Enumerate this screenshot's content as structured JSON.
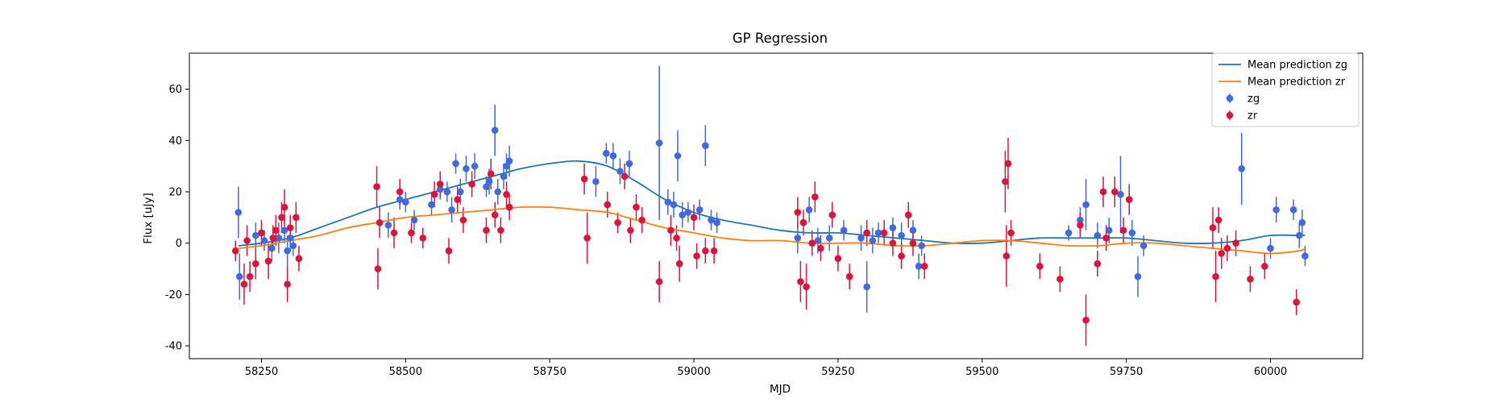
{
  "chart_data": {
    "type": "scatter",
    "title": "GP Regression",
    "xlabel": "MJD",
    "ylabel": "Flux [uJy]",
    "xlim": [
      58125,
      60160
    ],
    "ylim": [
      -45,
      74
    ],
    "xticks": [
      58250,
      58500,
      58750,
      59000,
      59250,
      59500,
      59750,
      60000
    ],
    "yticks": [
      -40,
      -20,
      0,
      20,
      40,
      60
    ],
    "grid": false,
    "legend_position": "top-right",
    "colors": {
      "zg_line": "#1f77b4",
      "zr_line": "#ff7f0e",
      "zg_points": "#4169e1",
      "zr_points": "#dc143c"
    },
    "lines": [
      {
        "name": "Mean prediction zg",
        "color": "#1f77b4",
        "x": [
          58210,
          58250,
          58300,
          58350,
          58400,
          58450,
          58500,
          58550,
          58600,
          58650,
          58700,
          58750,
          58800,
          58850,
          58900,
          58950,
          59000,
          59050,
          59100,
          59150,
          59200,
          59250,
          59300,
          59350,
          59400,
          59450,
          59500,
          59550,
          59600,
          59650,
          59700,
          59750,
          59800,
          59850,
          59900,
          59950,
          60000,
          60050,
          60060
        ],
        "y": [
          -1,
          0,
          2,
          6,
          10,
          14,
          17,
          20,
          23,
          26,
          29,
          31,
          32,
          30,
          24,
          17,
          12,
          9,
          7,
          5,
          4,
          4,
          3,
          2,
          1,
          0,
          0,
          1,
          2,
          2,
          2,
          2,
          1,
          0,
          0,
          1,
          3,
          3,
          3
        ]
      },
      {
        "name": "Mean prediction zr",
        "color": "#ff7f0e",
        "x": [
          58210,
          58250,
          58300,
          58350,
          58400,
          58450,
          58500,
          58550,
          58600,
          58650,
          58700,
          58750,
          58800,
          58850,
          58900,
          58950,
          59000,
          59050,
          59100,
          59150,
          59200,
          59250,
          59300,
          59350,
          59400,
          59450,
          59500,
          59550,
          59600,
          59650,
          59700,
          59750,
          59800,
          59850,
          59900,
          59950,
          60000,
          60050,
          60060
        ],
        "y": [
          -2,
          -1,
          1,
          3,
          6,
          8,
          10,
          11,
          12,
          13,
          14,
          14,
          13,
          12,
          9,
          6,
          4,
          2,
          1,
          1,
          0,
          0,
          0,
          -1,
          -1,
          0,
          1,
          1,
          0,
          -1,
          -1,
          0,
          0,
          -1,
          -2,
          -3,
          -4,
          -3,
          -2
        ]
      }
    ],
    "series": [
      {
        "name": "zg",
        "color": "#4169e1",
        "points": [
          [
            58210,
            12,
            10
          ],
          [
            58212,
            -13,
            9
          ],
          [
            58240,
            3,
            5
          ],
          [
            58255,
            1,
            4
          ],
          [
            58268,
            -2,
            5
          ],
          [
            58280,
            2,
            6
          ],
          [
            58290,
            5,
            5
          ],
          [
            58295,
            -3,
            6
          ],
          [
            58300,
            2,
            5
          ],
          [
            58305,
            -1,
            4
          ],
          [
            58470,
            7,
            5
          ],
          [
            58490,
            17,
            4
          ],
          [
            58500,
            16,
            4
          ],
          [
            58515,
            9,
            4
          ],
          [
            58545,
            15,
            4
          ],
          [
            58560,
            21,
            4
          ],
          [
            58572,
            20,
            4
          ],
          [
            58580,
            13,
            5
          ],
          [
            58587,
            31,
            4
          ],
          [
            58595,
            20,
            5
          ],
          [
            58605,
            29,
            5
          ],
          [
            58620,
            30,
            5
          ],
          [
            58640,
            22,
            4
          ],
          [
            58645,
            24,
            5
          ],
          [
            58655,
            44,
            10
          ],
          [
            58660,
            20,
            5
          ],
          [
            58670,
            26,
            5
          ],
          [
            58675,
            30,
            5
          ],
          [
            58680,
            32,
            6
          ],
          [
            58830,
            24,
            6
          ],
          [
            58848,
            35,
            4
          ],
          [
            58860,
            34,
            5
          ],
          [
            58872,
            28,
            5
          ],
          [
            58888,
            31,
            5
          ],
          [
            58940,
            39,
            30
          ],
          [
            58955,
            16,
            5
          ],
          [
            58965,
            15,
            5
          ],
          [
            58972,
            34,
            10
          ],
          [
            58980,
            11,
            5
          ],
          [
            58990,
            12,
            4
          ],
          [
            59010,
            13,
            4
          ],
          [
            59020,
            38,
            8
          ],
          [
            59030,
            9,
            4
          ],
          [
            59040,
            8,
            4
          ],
          [
            59180,
            2,
            6
          ],
          [
            59200,
            13,
            5
          ],
          [
            59215,
            1,
            5
          ],
          [
            59235,
            2,
            5
          ],
          [
            59260,
            5,
            4
          ],
          [
            59290,
            2,
            5
          ],
          [
            59300,
            -17,
            10
          ],
          [
            59310,
            1,
            5
          ],
          [
            59320,
            4,
            4
          ],
          [
            59345,
            6,
            4
          ],
          [
            59360,
            3,
            5
          ],
          [
            59380,
            5,
            4
          ],
          [
            59390,
            -9,
            5
          ],
          [
            59395,
            -1,
            4
          ],
          [
            59650,
            4,
            3
          ],
          [
            59670,
            9,
            5
          ],
          [
            59680,
            15,
            10
          ],
          [
            59700,
            3,
            5
          ],
          [
            59720,
            5,
            5
          ],
          [
            59740,
            19,
            15
          ],
          [
            59760,
            4,
            5
          ],
          [
            59770,
            -13,
            8
          ],
          [
            59780,
            -1,
            4
          ],
          [
            59950,
            29,
            14
          ],
          [
            60000,
            -2,
            4
          ],
          [
            60010,
            13,
            5
          ],
          [
            60040,
            13,
            4
          ],
          [
            60050,
            3,
            5
          ],
          [
            60055,
            8,
            5
          ],
          [
            60060,
            -5,
            4
          ]
        ]
      },
      {
        "name": "zr",
        "color": "#dc143c",
        "points": [
          [
            58205,
            -3,
            4
          ],
          [
            58220,
            -16,
            8
          ],
          [
            58225,
            1,
            6
          ],
          [
            58230,
            -13,
            6
          ],
          [
            58240,
            -8,
            6
          ],
          [
            58250,
            4,
            5
          ],
          [
            58262,
            -7,
            7
          ],
          [
            58270,
            2,
            5
          ],
          [
            58275,
            5,
            6
          ],
          [
            58285,
            10,
            6
          ],
          [
            58290,
            14,
            7
          ],
          [
            58295,
            -16,
            7
          ],
          [
            58300,
            6,
            5
          ],
          [
            58310,
            10,
            6
          ],
          [
            58315,
            -6,
            5
          ],
          [
            58450,
            22,
            8
          ],
          [
            58452,
            -10,
            8
          ],
          [
            58455,
            8,
            6
          ],
          [
            58480,
            4,
            6
          ],
          [
            58490,
            20,
            5
          ],
          [
            58510,
            4,
            4
          ],
          [
            58530,
            2,
            4
          ],
          [
            58550,
            19,
            5
          ],
          [
            58560,
            23,
            5
          ],
          [
            58575,
            -3,
            5
          ],
          [
            58590,
            17,
            5
          ],
          [
            58600,
            9,
            5
          ],
          [
            58615,
            23,
            5
          ],
          [
            58640,
            5,
            5
          ],
          [
            58648,
            27,
            6
          ],
          [
            58655,
            11,
            5
          ],
          [
            58665,
            5,
            5
          ],
          [
            58675,
            19,
            5
          ],
          [
            58680,
            14,
            5
          ],
          [
            58810,
            25,
            6
          ],
          [
            58815,
            2,
            10
          ],
          [
            58850,
            15,
            5
          ],
          [
            58868,
            8,
            4
          ],
          [
            58880,
            26,
            5
          ],
          [
            58890,
            5,
            5
          ],
          [
            58900,
            14,
            5
          ],
          [
            58910,
            9,
            5
          ],
          [
            58940,
            -15,
            8
          ],
          [
            58960,
            5,
            6
          ],
          [
            58970,
            2,
            5
          ],
          [
            58975,
            -8,
            7
          ],
          [
            59000,
            10,
            5
          ],
          [
            59005,
            -5,
            5
          ],
          [
            59020,
            -3,
            5
          ],
          [
            59035,
            -3,
            5
          ],
          [
            59180,
            12,
            6
          ],
          [
            59185,
            -15,
            8
          ],
          [
            59190,
            8,
            5
          ],
          [
            59195,
            -17,
            9
          ],
          [
            59205,
            0,
            5
          ],
          [
            59210,
            18,
            6
          ],
          [
            59220,
            -2,
            5
          ],
          [
            59240,
            11,
            5
          ],
          [
            59250,
            -6,
            5
          ],
          [
            59270,
            -13,
            5
          ],
          [
            59300,
            4,
            5
          ],
          [
            59330,
            4,
            5
          ],
          [
            59345,
            0,
            5
          ],
          [
            59360,
            -5,
            5
          ],
          [
            59372,
            11,
            5
          ],
          [
            59380,
            0,
            5
          ],
          [
            59400,
            -9,
            5
          ],
          [
            59540,
            24,
            12
          ],
          [
            59542,
            -5,
            12
          ],
          [
            59545,
            31,
            10
          ],
          [
            59550,
            4,
            5
          ],
          [
            59600,
            -9,
            5
          ],
          [
            59635,
            -14,
            5
          ],
          [
            59670,
            7,
            5
          ],
          [
            59680,
            -30,
            10
          ],
          [
            59700,
            -8,
            5
          ],
          [
            59710,
            20,
            6
          ],
          [
            59715,
            2,
            5
          ],
          [
            59730,
            20,
            6
          ],
          [
            59745,
            5,
            5
          ],
          [
            59755,
            17,
            6
          ],
          [
            59900,
            6,
            8
          ],
          [
            59905,
            -13,
            10
          ],
          [
            59910,
            9,
            5
          ],
          [
            59915,
            -4,
            6
          ],
          [
            59925,
            -2,
            5
          ],
          [
            59940,
            0,
            5
          ],
          [
            59965,
            -14,
            5
          ],
          [
            59990,
            -9,
            5
          ],
          [
            60045,
            -23,
            5
          ]
        ]
      }
    ]
  }
}
